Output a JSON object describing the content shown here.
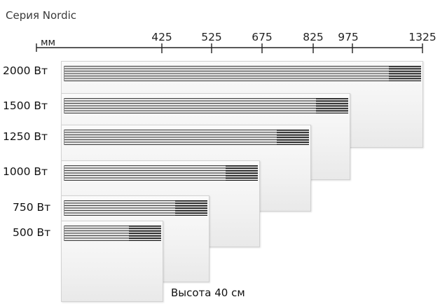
{
  "title": "Серия Nordic",
  "unit": "мм",
  "scale_ticks": [
    "425",
    "525",
    "675",
    "825",
    "975",
    "1325"
  ],
  "rows": [
    {
      "power": "2000 Вт"
    },
    {
      "power": "1500 Вт"
    },
    {
      "power": "1250 Вт"
    },
    {
      "power": "1000 Вт"
    },
    {
      "power": "750 Вт"
    },
    {
      "power": "500 Вт"
    }
  ],
  "height_note": "Высота 40 см",
  "colors": {
    "grille": "#3a3a3a",
    "panel": "#f2f2f2",
    "text": "#111111"
  }
}
